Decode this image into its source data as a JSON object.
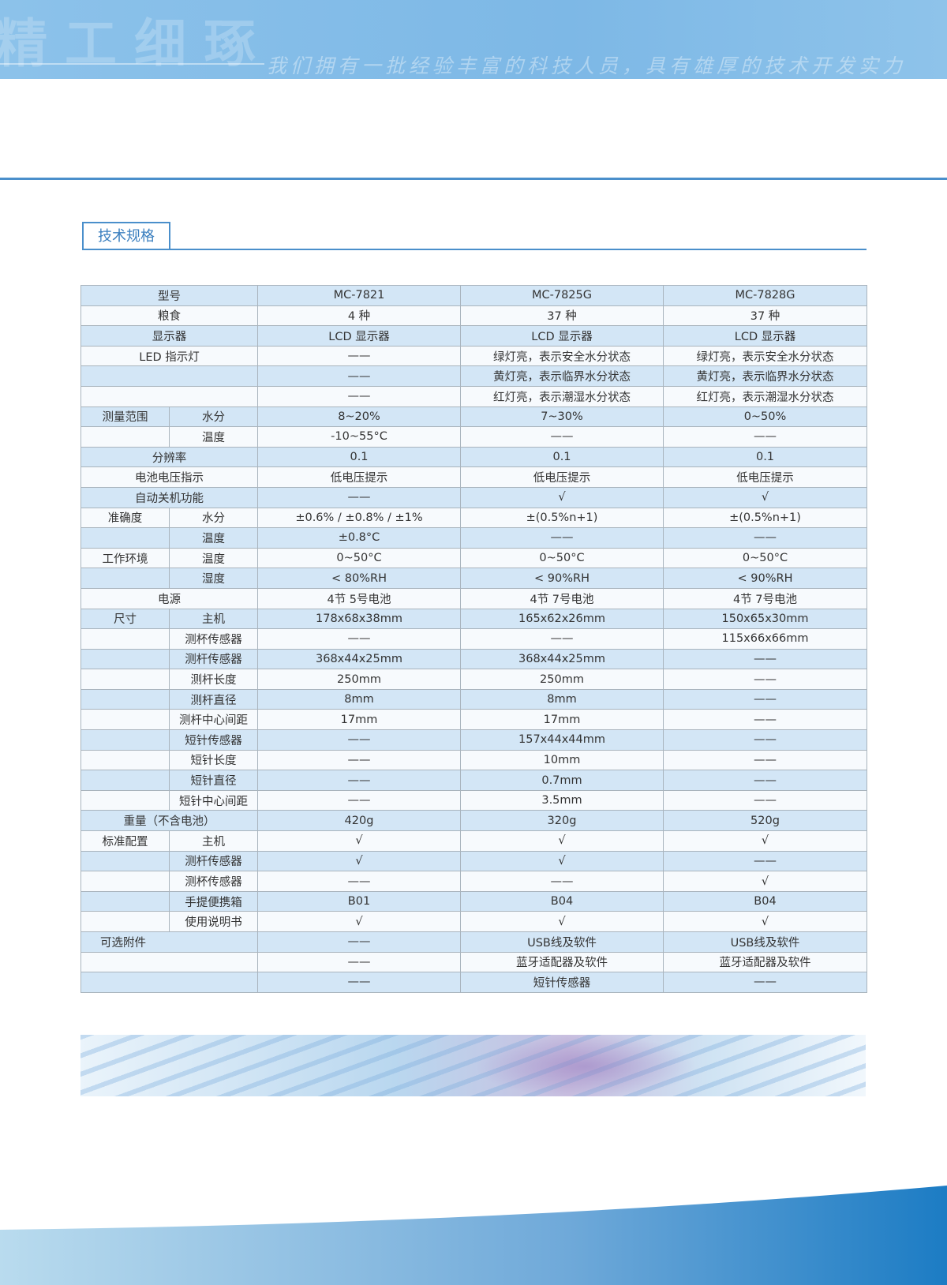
{
  "header": {
    "watermark": "精工细琢",
    "slogan": "我们拥有一批经验丰富的科技人员，具有雄厚的技术开发实力"
  },
  "section": {
    "title": "技术规格"
  },
  "table": {
    "rows": [
      {
        "label": "型号",
        "values": [
          "MC-7821",
          "MC-7825G",
          "MC-7828G"
        ]
      },
      {
        "label": "粮食",
        "values": [
          "4 种",
          "37 种",
          "37 种"
        ]
      },
      {
        "label": "显示器",
        "values": [
          "LCD 显示器",
          "LCD 显示器",
          "LCD 显示器"
        ]
      },
      {
        "label": "LED 指示灯",
        "values": [
          "——",
          "绿灯亮，表示安全水分状态",
          "绿灯亮，表示安全水分状态"
        ]
      },
      {
        "values": [
          "——",
          "黄灯亮，表示临界水分状态",
          "黄灯亮，表示临界水分状态"
        ]
      },
      {
        "values": [
          "——",
          "红灯亮，表示潮湿水分状态",
          "红灯亮，表示潮湿水分状态"
        ]
      },
      {
        "group": "测量范围",
        "item": "水分",
        "values": [
          "8~20%",
          "7~30%",
          "0~50%"
        ]
      },
      {
        "item": "温度",
        "values": [
          "-10~55°C",
          "——",
          "——"
        ]
      },
      {
        "label": "分辨率",
        "values": [
          "0.1",
          "0.1",
          "0.1"
        ]
      },
      {
        "label": "电池电压指示",
        "values": [
          "低电压提示",
          "低电压提示",
          "低电压提示"
        ]
      },
      {
        "label": "自动关机功能",
        "values": [
          "——",
          "√",
          "√"
        ]
      },
      {
        "group": "准确度",
        "item": "水分",
        "values": [
          "±0.6% / ±0.8% / ±1%",
          "±(0.5%n+1)",
          "±(0.5%n+1)"
        ]
      },
      {
        "item": "温度",
        "values": [
          "±0.8°C",
          "——",
          "——"
        ]
      },
      {
        "group": "工作环境",
        "item": "温度",
        "values": [
          "0~50°C",
          "0~50°C",
          "0~50°C"
        ]
      },
      {
        "item": "湿度",
        "values": [
          "< 80%RH",
          "< 90%RH",
          "< 90%RH"
        ]
      },
      {
        "label": "电源",
        "values": [
          "4节 5号电池",
          "4节 7号电池",
          "4节 7号电池"
        ]
      },
      {
        "group": "尺寸",
        "item": "主机",
        "values": [
          "178x68x38mm",
          "165x62x26mm",
          "150x65x30mm"
        ]
      },
      {
        "item": "测杯传感器",
        "values": [
          "——",
          "——",
          "115x66x66mm"
        ]
      },
      {
        "item": "测杆传感器",
        "values": [
          "368x44x25mm",
          "368x44x25mm",
          "——"
        ]
      },
      {
        "item": "测杆长度",
        "values": [
          "250mm",
          "250mm",
          "——"
        ]
      },
      {
        "item": "测杆直径",
        "values": [
          "8mm",
          "8mm",
          "——"
        ]
      },
      {
        "item": "测杆中心间距",
        "values": [
          "17mm",
          "17mm",
          "——"
        ]
      },
      {
        "item": "短针传感器",
        "values": [
          "——",
          "157x44x44mm",
          "——"
        ]
      },
      {
        "item": "短针长度",
        "values": [
          "——",
          "10mm",
          "——"
        ]
      },
      {
        "item": "短针直径",
        "values": [
          "——",
          "0.7mm",
          "——"
        ]
      },
      {
        "item": "短针中心间距",
        "values": [
          "——",
          "3.5mm",
          "——"
        ]
      },
      {
        "label": "重量（不含电池）",
        "values": [
          "420g",
          "320g",
          "520g"
        ]
      },
      {
        "group": "标准配置",
        "item": "主机",
        "values": [
          "√",
          "√",
          "√"
        ]
      },
      {
        "item": "测杆传感器",
        "values": [
          "√",
          "√",
          "——"
        ]
      },
      {
        "item": "测杯传感器",
        "values": [
          "——",
          "——",
          "√"
        ]
      },
      {
        "item": "手提便携箱",
        "values": [
          "B01",
          "B04",
          "B04"
        ]
      },
      {
        "item": "使用说明书",
        "values": [
          "√",
          "√",
          "√"
        ]
      },
      {
        "group": "可选附件",
        "values": [
          "——",
          "USB线及软件",
          "USB线及软件"
        ]
      },
      {
        "values": [
          "——",
          "蓝牙适配器及软件",
          "蓝牙适配器及软件"
        ]
      },
      {
        "values": [
          "——",
          "短针传感器",
          "——"
        ]
      }
    ]
  }
}
